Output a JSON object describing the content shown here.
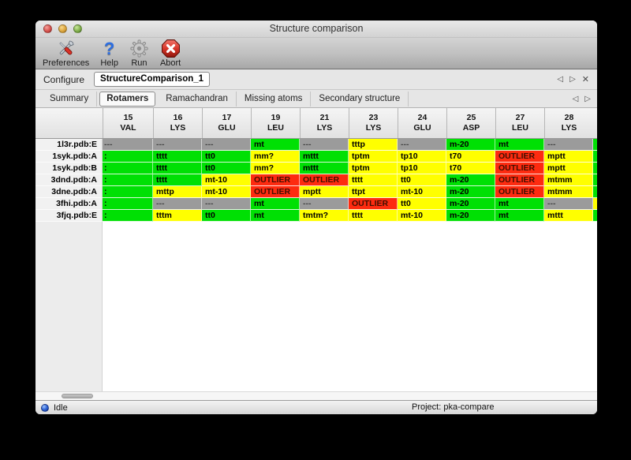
{
  "window": {
    "title": "Structure comparison"
  },
  "toolbar": {
    "buttons": [
      {
        "label": "Preferences",
        "icon": "tools-icon"
      },
      {
        "label": "Help",
        "icon": "question-mark-icon",
        "glyph": "?"
      },
      {
        "label": "Run",
        "icon": "gear-icon"
      },
      {
        "label": "Abort",
        "icon": "stop-x-icon"
      }
    ]
  },
  "configure": {
    "label": "Configure",
    "value": "StructureComparison_1",
    "nav_prev": "◁",
    "nav_next": "▷",
    "nav_close": "✕"
  },
  "tabs": {
    "items": [
      "Summary",
      "Rotamers",
      "Ramachandran",
      "Missing atoms",
      "Secondary structure"
    ],
    "selected": "Rotamers",
    "nav_prev": "◁",
    "nav_next": "▷"
  },
  "table": {
    "columns": [
      {
        "num": "15",
        "res": "VAL"
      },
      {
        "num": "16",
        "res": "LYS"
      },
      {
        "num": "17",
        "res": "GLU"
      },
      {
        "num": "19",
        "res": "LEU"
      },
      {
        "num": "21",
        "res": "LYS"
      },
      {
        "num": "23",
        "res": "LYS"
      },
      {
        "num": "24",
        "res": "GLU"
      },
      {
        "num": "25",
        "res": "ASP"
      },
      {
        "num": "27",
        "res": "LEU"
      },
      {
        "num": "28",
        "res": "LYS"
      }
    ],
    "rows": [
      {
        "label": "1l3r.pdb:E",
        "edge": "green",
        "cells": [
          {
            "t": "---",
            "c": "gray"
          },
          {
            "t": "---",
            "c": "gray"
          },
          {
            "t": "---",
            "c": "gray"
          },
          {
            "t": "mt",
            "c": "green"
          },
          {
            "t": "---",
            "c": "gray"
          },
          {
            "t": "tttp",
            "c": "yellow"
          },
          {
            "t": "---",
            "c": "gray"
          },
          {
            "t": "m-20",
            "c": "green"
          },
          {
            "t": "mt",
            "c": "green"
          },
          {
            "t": "---",
            "c": "gray"
          }
        ]
      },
      {
        "label": "1syk.pdb:A",
        "edge": "green",
        "cells": [
          {
            "t": ":",
            "c": "green"
          },
          {
            "t": "tttt",
            "c": "green"
          },
          {
            "t": "tt0",
            "c": "green"
          },
          {
            "t": "mm?",
            "c": "yellow"
          },
          {
            "t": "mttt",
            "c": "green"
          },
          {
            "t": "tptm",
            "c": "yellow"
          },
          {
            "t": "tp10",
            "c": "yellow"
          },
          {
            "t": "t70",
            "c": "yellow"
          },
          {
            "t": "OUTLIER",
            "c": "red"
          },
          {
            "t": "mptt",
            "c": "yellow"
          }
        ]
      },
      {
        "label": "1syk.pdb:B",
        "edge": "green",
        "cells": [
          {
            "t": ":",
            "c": "green"
          },
          {
            "t": "tttt",
            "c": "green"
          },
          {
            "t": "tt0",
            "c": "green"
          },
          {
            "t": "mm?",
            "c": "yellow"
          },
          {
            "t": "mttt",
            "c": "green"
          },
          {
            "t": "tptm",
            "c": "yellow"
          },
          {
            "t": "tp10",
            "c": "yellow"
          },
          {
            "t": "t70",
            "c": "yellow"
          },
          {
            "t": "OUTLIER",
            "c": "red"
          },
          {
            "t": "mptt",
            "c": "yellow"
          }
        ]
      },
      {
        "label": "3dnd.pdb:A",
        "edge": "green",
        "cells": [
          {
            "t": ":",
            "c": "green"
          },
          {
            "t": "tttt",
            "c": "green"
          },
          {
            "t": "mt-10",
            "c": "yellow"
          },
          {
            "t": "OUTLIER",
            "c": "red"
          },
          {
            "t": "OUTLIER",
            "c": "red"
          },
          {
            "t": "tttt",
            "c": "yellow"
          },
          {
            "t": "tt0",
            "c": "yellow"
          },
          {
            "t": "m-20",
            "c": "green"
          },
          {
            "t": "OUTLIER",
            "c": "red"
          },
          {
            "t": "mtmm",
            "c": "yellow"
          }
        ]
      },
      {
        "label": "3dne.pdb:A",
        "edge": "green",
        "cells": [
          {
            "t": ":",
            "c": "green"
          },
          {
            "t": "mttp",
            "c": "yellow"
          },
          {
            "t": "mt-10",
            "c": "yellow"
          },
          {
            "t": "OUTLIER",
            "c": "red"
          },
          {
            "t": "mptt",
            "c": "yellow"
          },
          {
            "t": "ttpt",
            "c": "yellow"
          },
          {
            "t": "mt-10",
            "c": "yellow"
          },
          {
            "t": "m-20",
            "c": "green"
          },
          {
            "t": "OUTLIER",
            "c": "red"
          },
          {
            "t": "mtmm",
            "c": "yellow"
          }
        ]
      },
      {
        "label": "3fhi.pdb:A",
        "edge": "yellow",
        "cells": [
          {
            "t": ":",
            "c": "green"
          },
          {
            "t": "---",
            "c": "gray"
          },
          {
            "t": "---",
            "c": "gray"
          },
          {
            "t": "mt",
            "c": "green"
          },
          {
            "t": "---",
            "c": "gray"
          },
          {
            "t": "OUTLIER",
            "c": "red"
          },
          {
            "t": "tt0",
            "c": "yellow"
          },
          {
            "t": "m-20",
            "c": "green"
          },
          {
            "t": "mt",
            "c": "green"
          },
          {
            "t": "---",
            "c": "gray"
          }
        ]
      },
      {
        "label": "3fjq.pdb:E",
        "edge": "green",
        "cells": [
          {
            "t": ":",
            "c": "green"
          },
          {
            "t": "tttm",
            "c": "yellow"
          },
          {
            "t": "tt0",
            "c": "green"
          },
          {
            "t": "mt",
            "c": "green"
          },
          {
            "t": "tmtm?",
            "c": "yellow"
          },
          {
            "t": "tttt",
            "c": "yellow"
          },
          {
            "t": "mt-10",
            "c": "yellow"
          },
          {
            "t": "m-20",
            "c": "green"
          },
          {
            "t": "mt",
            "c": "green"
          },
          {
            "t": "mttt",
            "c": "yellow"
          }
        ]
      }
    ]
  },
  "colors": {
    "green": "#00e004",
    "yellow": "#ffff00",
    "red": "#fd2b10",
    "gray": "#9b9b9b",
    "status_dot": "#2f63d4"
  },
  "statusbar": {
    "status": "Idle",
    "project": "Project: pka-compare"
  }
}
